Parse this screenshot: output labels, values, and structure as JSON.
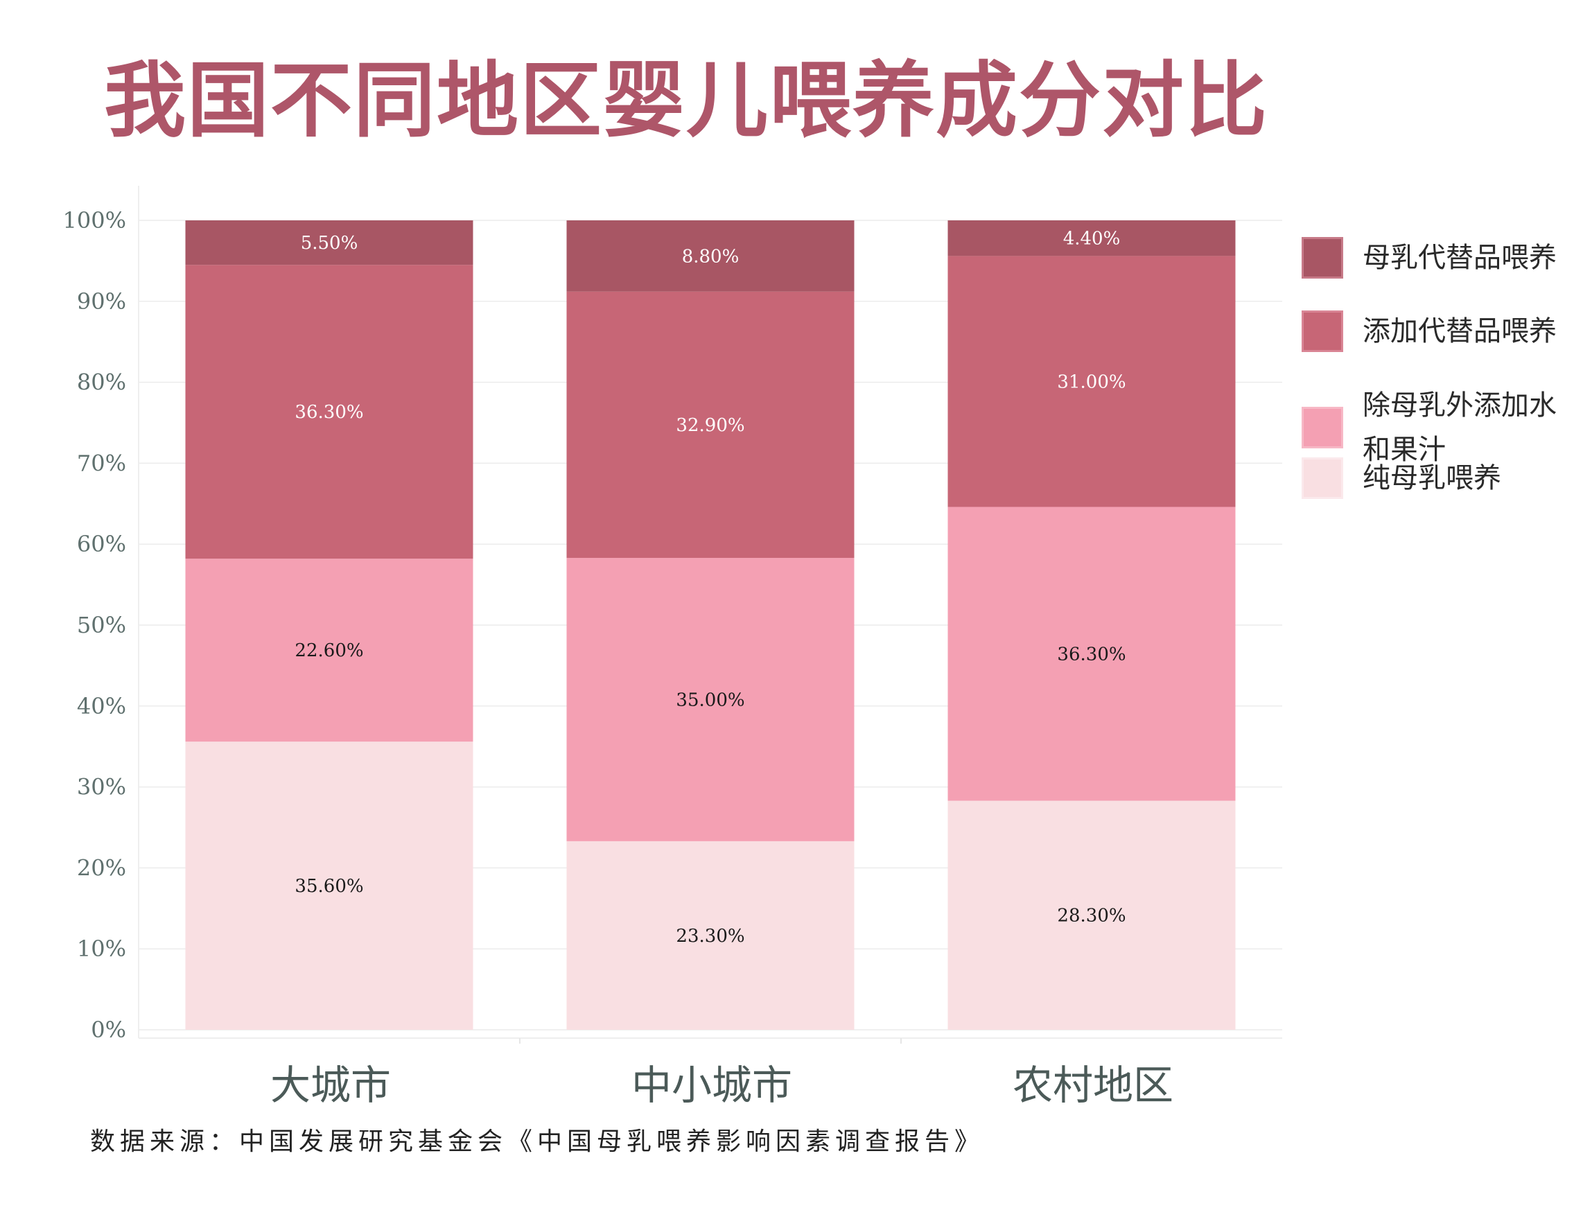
{
  "title": "我国不同地区婴儿喂养成分对比",
  "source": "数据来源：中国发展研究基金会《中国母乳喂养影响因素调查报告》",
  "chart_data": {
    "type": "bar",
    "stacked": true,
    "categories": [
      "大城市",
      "中小城市",
      "农村地区"
    ],
    "ylim": [
      0,
      100
    ],
    "yticks": [
      "0%",
      "10%",
      "20%",
      "30%",
      "40%",
      "50%",
      "60%",
      "70%",
      "80%",
      "90%",
      "100%"
    ],
    "grid": true,
    "legend_position": "right",
    "series": [
      {
        "name": "纯母乳喂养",
        "values": [
          35.6,
          23.3,
          28.3
        ],
        "labels": [
          "35.60%",
          "23.30%",
          "28.30%"
        ],
        "color": "#f9dfe2",
        "label_color": "#1a1a1a"
      },
      {
        "name": "除母乳外添加水和果汁",
        "values": [
          22.6,
          35.0,
          36.3
        ],
        "labels": [
          "22.60%",
          "35.00%",
          "36.30%"
        ],
        "color": "#f4a0b3",
        "label_color": "#1a1a1a"
      },
      {
        "name": "添加代替品喂养",
        "values": [
          36.3,
          32.9,
          31.0
        ],
        "labels": [
          "36.30%",
          "32.90%",
          "31.00%"
        ],
        "color": "#c76676",
        "label_color": "#ffffff"
      },
      {
        "name": "母乳代替品喂养",
        "values": [
          5.5,
          8.8,
          4.4
        ],
        "labels": [
          "5.50%",
          "8.80%",
          "4.40%"
        ],
        "color": "#a85664",
        "label_color": "#ffffff"
      }
    ]
  },
  "legend": {
    "items": [
      {
        "label": "母乳代替品喂养",
        "color": "#a85664",
        "border": "#c77a88"
      },
      {
        "label": "添加代替品喂养",
        "color": "#c76676",
        "border": "#d98595"
      },
      {
        "label": "除母乳外添加水和果汁",
        "color": "#f4a0b3",
        "border": "#f7b8c6"
      },
      {
        "label": "纯母乳喂养",
        "color": "#f9dfe2",
        "border": "#fbe9ec"
      }
    ]
  }
}
